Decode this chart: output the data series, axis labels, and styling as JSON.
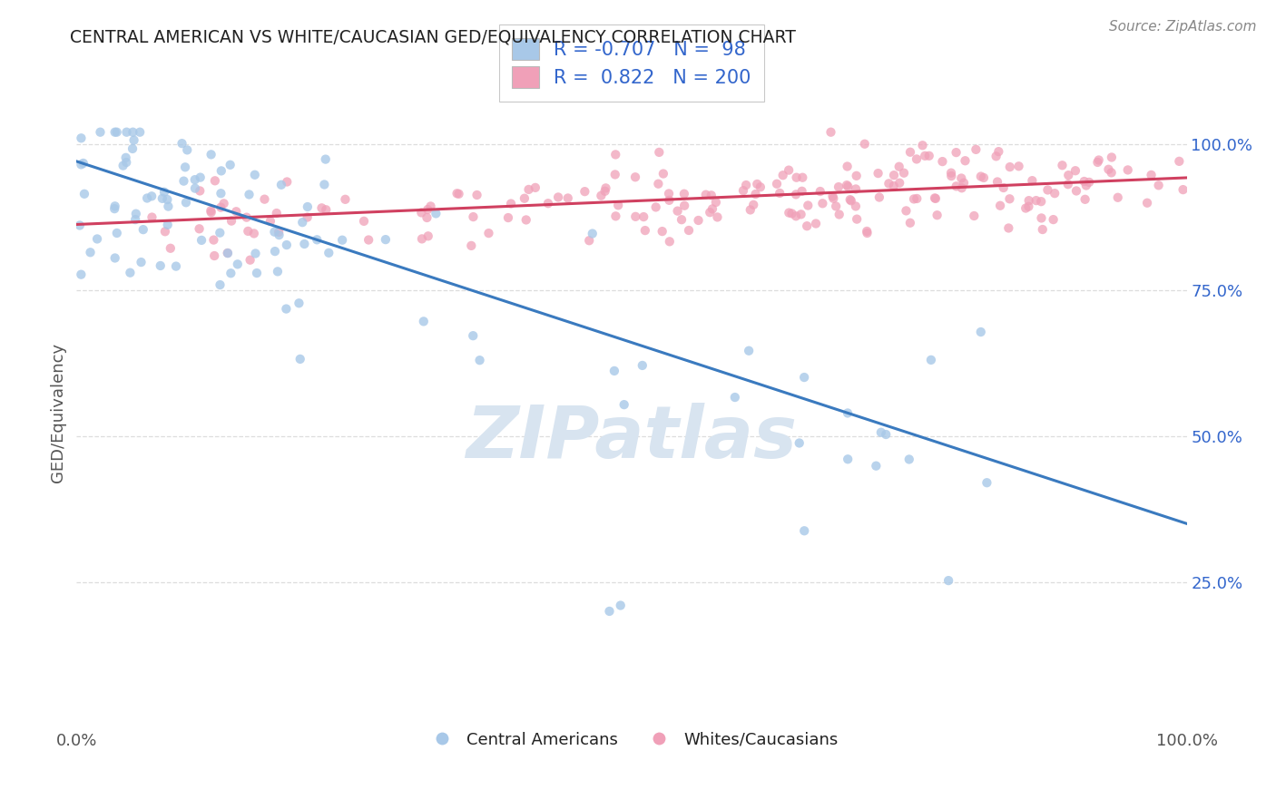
{
  "title": "CENTRAL AMERICAN VS WHITE/CAUCASIAN GED/EQUIVALENCY CORRELATION CHART",
  "source": "Source: ZipAtlas.com",
  "ylabel": "GED/Equivalency",
  "ytick_labels": [
    "25.0%",
    "50.0%",
    "75.0%",
    "100.0%"
  ],
  "xtick_labels": [
    "0.0%",
    "100.0%"
  ],
  "legend_r_blue": "-0.707",
  "legend_n_blue": "98",
  "legend_r_pink": "0.822",
  "legend_n_pink": "200",
  "blue_color": "#a8c8e8",
  "pink_color": "#f0a0b8",
  "blue_line_color": "#3a7abf",
  "pink_line_color": "#d04060",
  "watermark_color": "#d8e4f0",
  "background_color": "#ffffff",
  "title_color": "#222222",
  "legend_text_color": "#3366cc",
  "axis_label_color": "#555555",
  "grid_color": "#dddddd",
  "source_color": "#888888"
}
